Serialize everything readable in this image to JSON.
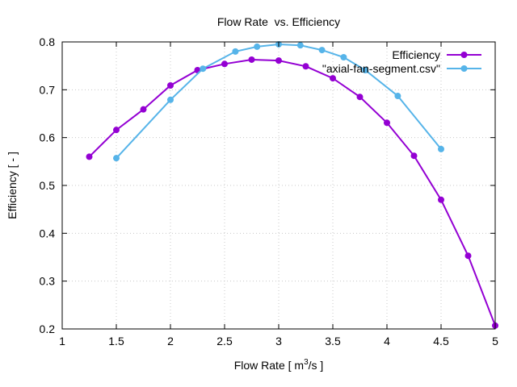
{
  "chart_data": {
    "type": "line",
    "title": "Flow Rate  vs. Efficiency",
    "xlabel": "Flow Rate [ m³/s ]",
    "xlabel_parts": {
      "pre": "Flow Rate [ m",
      "sup": "3",
      "post": "/s ]"
    },
    "ylabel": "Efficiency [ - ]",
    "xlim": [
      1,
      5
    ],
    "ylim": [
      0.2,
      0.8
    ],
    "xticks": [
      1,
      1.5,
      2,
      2.5,
      3,
      3.5,
      4,
      4.5,
      5
    ],
    "xtick_labels": [
      "1",
      "1.5",
      "2",
      "2.5",
      "3",
      "3.5",
      "4",
      "4.5",
      "5"
    ],
    "yticks": [
      0.2,
      0.3,
      0.4,
      0.5,
      0.6,
      0.7,
      0.8
    ],
    "ytick_labels": [
      "0.2",
      "0.3",
      "0.4",
      "0.5",
      "0.6",
      "0.7",
      "0.8"
    ],
    "grid": true,
    "legend_position": "top-right",
    "series": [
      {
        "name": "Efficiency",
        "color": "#9400d3",
        "x": [
          1.25,
          1.5,
          1.75,
          2.0,
          2.25,
          2.5,
          2.75,
          3.0,
          3.25,
          3.5,
          3.75,
          4.0,
          4.25,
          4.5,
          4.75,
          5.0
        ],
        "y": [
          0.56,
          0.616,
          0.659,
          0.709,
          0.741,
          0.754,
          0.763,
          0.761,
          0.749,
          0.724,
          0.685,
          0.631,
          0.562,
          0.47,
          0.353,
          0.207
        ]
      },
      {
        "name": "\"axial-fan-segment.csv\"",
        "color": "#56b4e9",
        "x": [
          1.5,
          2.0,
          2.3,
          2.6,
          2.8,
          3.0,
          3.2,
          3.4,
          3.6,
          3.8,
          4.1,
          4.5
        ],
        "y": [
          0.557,
          0.679,
          0.744,
          0.78,
          0.79,
          0.795,
          0.793,
          0.783,
          0.768,
          0.741,
          0.687,
          0.576
        ]
      }
    ]
  }
}
